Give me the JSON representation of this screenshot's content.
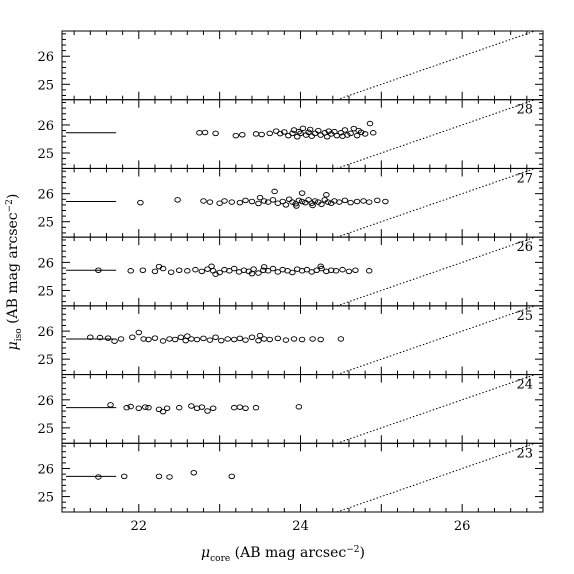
{
  "chart_data": {
    "type": "scatter",
    "xlabel": {
      "symbol": "μ",
      "sub": "core",
      "units_pre": " (AB mag arcsec",
      "sup": "−2",
      "units_post": ")"
    },
    "ylabel": {
      "symbol": "μ",
      "sub": "iso",
      "units_pre": " (AB mag arcsec",
      "sup": "−2",
      "units_post": ")"
    },
    "xlim": [
      21.05,
      27.0
    ],
    "ylim": [
      24.45,
      26.9
    ],
    "xticks_major": [
      22,
      24,
      26
    ],
    "xtick_labels": [
      "22",
      "24",
      "26"
    ],
    "yticks_major": [
      25,
      26
    ],
    "ytick_labels": [
      "25",
      "26"
    ],
    "panels": [
      {
        "label": "",
        "ref_line": null,
        "points": []
      },
      {
        "label": "28",
        "ref_line": {
          "y": 25.72,
          "x0": 21.1,
          "x1": 21.72
        },
        "points": [
          [
            22.75,
            25.72
          ],
          [
            22.82,
            25.73
          ],
          [
            22.95,
            25.7
          ],
          [
            23.2,
            25.62
          ],
          [
            23.28,
            25.65
          ],
          [
            23.45,
            25.68
          ],
          [
            23.52,
            25.66
          ],
          [
            23.62,
            25.7
          ],
          [
            23.7,
            25.78
          ],
          [
            23.75,
            25.69
          ],
          [
            23.8,
            25.75
          ],
          [
            23.85,
            25.62
          ],
          [
            23.9,
            25.7
          ],
          [
            23.92,
            25.82
          ],
          [
            23.96,
            25.58
          ],
          [
            24.0,
            25.7
          ],
          [
            24.03,
            25.88
          ],
          [
            24.07,
            25.64
          ],
          [
            24.1,
            25.74
          ],
          [
            24.14,
            25.6
          ],
          [
            24.18,
            25.7
          ],
          [
            24.22,
            25.8
          ],
          [
            24.25,
            25.64
          ],
          [
            24.3,
            25.72
          ],
          [
            24.33,
            25.58
          ],
          [
            24.38,
            25.68
          ],
          [
            24.42,
            25.76
          ],
          [
            24.45,
            25.62
          ],
          [
            24.5,
            25.72
          ],
          [
            24.55,
            25.82
          ],
          [
            24.58,
            25.64
          ],
          [
            24.62,
            25.7
          ],
          [
            24.66,
            25.87
          ],
          [
            24.7,
            25.62
          ],
          [
            24.75,
            25.74
          ],
          [
            24.8,
            25.68
          ],
          [
            24.86,
            26.05
          ],
          [
            24.9,
            25.72
          ],
          [
            23.98,
            25.76
          ],
          [
            24.12,
            25.84
          ],
          [
            24.35,
            25.78
          ],
          [
            24.52,
            25.6
          ],
          [
            24.72,
            25.8
          ]
        ]
      },
      {
        "label": "27",
        "ref_line": {
          "y": 25.72,
          "x0": 21.1,
          "x1": 21.72
        },
        "points": [
          [
            22.02,
            25.68
          ],
          [
            22.48,
            25.78
          ],
          [
            22.8,
            25.74
          ],
          [
            22.88,
            25.7
          ],
          [
            23.0,
            25.66
          ],
          [
            23.06,
            25.74
          ],
          [
            23.15,
            25.7
          ],
          [
            23.25,
            25.68
          ],
          [
            23.32,
            25.76
          ],
          [
            23.4,
            25.72
          ],
          [
            23.48,
            25.65
          ],
          [
            23.55,
            25.74
          ],
          [
            23.6,
            25.7
          ],
          [
            23.66,
            25.78
          ],
          [
            23.72,
            25.66
          ],
          [
            23.78,
            25.72
          ],
          [
            23.82,
            25.6
          ],
          [
            23.86,
            25.8
          ],
          [
            23.9,
            25.7
          ],
          [
            23.94,
            25.64
          ],
          [
            23.98,
            25.76
          ],
          [
            24.02,
            25.72
          ],
          [
            24.06,
            25.68
          ],
          [
            24.1,
            25.78
          ],
          [
            24.14,
            25.66
          ],
          [
            24.18,
            25.74
          ],
          [
            24.22,
            25.7
          ],
          [
            24.26,
            25.62
          ],
          [
            24.3,
            25.78
          ],
          [
            24.34,
            25.7
          ],
          [
            24.38,
            25.66
          ],
          [
            24.42,
            25.74
          ],
          [
            24.48,
            25.7
          ],
          [
            24.55,
            25.76
          ],
          [
            24.62,
            25.68
          ],
          [
            24.7,
            25.72
          ],
          [
            24.78,
            25.74
          ],
          [
            24.85,
            25.7
          ],
          [
            24.95,
            25.76
          ],
          [
            25.05,
            25.72
          ],
          [
            23.68,
            26.08
          ],
          [
            24.02,
            26.02
          ],
          [
            24.32,
            25.96
          ],
          [
            23.5,
            25.86
          ],
          [
            23.95,
            25.56
          ],
          [
            24.15,
            25.58
          ]
        ]
      },
      {
        "label": "26",
        "ref_line": {
          "y": 25.72,
          "x0": 21.1,
          "x1": 21.72
        },
        "points": [
          [
            21.5,
            25.72
          ],
          [
            21.9,
            25.7
          ],
          [
            22.05,
            25.72
          ],
          [
            22.2,
            25.68
          ],
          [
            22.3,
            25.78
          ],
          [
            22.4,
            25.65
          ],
          [
            22.5,
            25.72
          ],
          [
            22.6,
            25.7
          ],
          [
            22.7,
            25.74
          ],
          [
            22.78,
            25.68
          ],
          [
            22.85,
            25.76
          ],
          [
            22.92,
            25.7
          ],
          [
            23.0,
            25.64
          ],
          [
            23.06,
            25.74
          ],
          [
            23.12,
            25.7
          ],
          [
            23.18,
            25.78
          ],
          [
            23.24,
            25.66
          ],
          [
            23.3,
            25.72
          ],
          [
            23.36,
            25.68
          ],
          [
            23.42,
            25.76
          ],
          [
            23.48,
            25.62
          ],
          [
            23.54,
            25.72
          ],
          [
            23.6,
            25.7
          ],
          [
            23.66,
            25.78
          ],
          [
            23.72,
            25.66
          ],
          [
            23.78,
            25.74
          ],
          [
            23.84,
            25.7
          ],
          [
            23.9,
            25.64
          ],
          [
            23.96,
            25.76
          ],
          [
            24.02,
            25.7
          ],
          [
            24.08,
            25.74
          ],
          [
            24.14,
            25.66
          ],
          [
            24.2,
            25.72
          ],
          [
            24.26,
            25.78
          ],
          [
            24.32,
            25.68
          ],
          [
            24.38,
            25.72
          ],
          [
            24.44,
            25.7
          ],
          [
            24.52,
            25.74
          ],
          [
            24.6,
            25.68
          ],
          [
            24.68,
            25.72
          ],
          [
            24.85,
            25.7
          ],
          [
            22.25,
            25.85
          ],
          [
            22.9,
            25.86
          ],
          [
            23.55,
            25.84
          ],
          [
            24.25,
            25.86
          ],
          [
            22.95,
            25.58
          ],
          [
            23.4,
            25.6
          ]
        ]
      },
      {
        "label": "25",
        "ref_line": {
          "y": 25.72,
          "x0": 21.1,
          "x1": 21.72
        },
        "points": [
          [
            21.4,
            25.78
          ],
          [
            21.52,
            25.77
          ],
          [
            21.62,
            25.75
          ],
          [
            21.7,
            25.64
          ],
          [
            21.78,
            25.72
          ],
          [
            21.92,
            25.78
          ],
          [
            22.0,
            25.95
          ],
          [
            22.06,
            25.72
          ],
          [
            22.12,
            25.7
          ],
          [
            22.2,
            25.75
          ],
          [
            22.3,
            25.65
          ],
          [
            22.38,
            25.72
          ],
          [
            22.45,
            25.7
          ],
          [
            22.52,
            25.78
          ],
          [
            22.58,
            25.66
          ],
          [
            22.65,
            25.72
          ],
          [
            22.72,
            25.7
          ],
          [
            22.8,
            25.74
          ],
          [
            22.88,
            25.68
          ],
          [
            22.95,
            25.78
          ],
          [
            23.02,
            25.66
          ],
          [
            23.1,
            25.72
          ],
          [
            23.18,
            25.7
          ],
          [
            23.25,
            25.74
          ],
          [
            23.32,
            25.68
          ],
          [
            23.4,
            25.78
          ],
          [
            23.48,
            25.66
          ],
          [
            23.55,
            25.72
          ],
          [
            23.62,
            25.7
          ],
          [
            23.72,
            25.74
          ],
          [
            23.82,
            25.68
          ],
          [
            23.92,
            25.72
          ],
          [
            24.02,
            25.7
          ],
          [
            24.15,
            25.72
          ],
          [
            24.25,
            25.7
          ],
          [
            24.5,
            25.72
          ],
          [
            23.5,
            25.84
          ],
          [
            22.6,
            25.82
          ]
        ]
      },
      {
        "label": "24",
        "ref_line": {
          "y": 25.72,
          "x0": 21.1,
          "x1": 21.72
        },
        "points": [
          [
            21.65,
            25.82
          ],
          [
            21.85,
            25.72
          ],
          [
            21.9,
            25.76
          ],
          [
            22.0,
            25.7
          ],
          [
            22.08,
            25.74
          ],
          [
            22.25,
            25.66
          ],
          [
            22.35,
            25.7
          ],
          [
            22.5,
            25.72
          ],
          [
            22.65,
            25.78
          ],
          [
            22.72,
            25.7
          ],
          [
            22.78,
            25.74
          ],
          [
            22.85,
            25.6
          ],
          [
            22.92,
            25.7
          ],
          [
            23.18,
            25.72
          ],
          [
            23.25,
            25.74
          ],
          [
            23.32,
            25.7
          ],
          [
            23.45,
            25.72
          ],
          [
            23.98,
            25.75
          ],
          [
            22.12,
            25.72
          ],
          [
            22.3,
            25.58
          ]
        ]
      },
      {
        "label": "23",
        "ref_line": {
          "y": 25.72,
          "x0": 21.1,
          "x1": 21.72
        },
        "points": [
          [
            21.5,
            25.7
          ],
          [
            21.82,
            25.72
          ],
          [
            22.25,
            25.72
          ],
          [
            22.38,
            25.7
          ],
          [
            22.68,
            25.85
          ],
          [
            23.15,
            25.72
          ]
        ]
      }
    ],
    "diagonal_line": {
      "style": "dotted",
      "x0": 24.45,
      "y0": 24.45,
      "x1": 26.9,
      "y1": 26.9
    }
  }
}
